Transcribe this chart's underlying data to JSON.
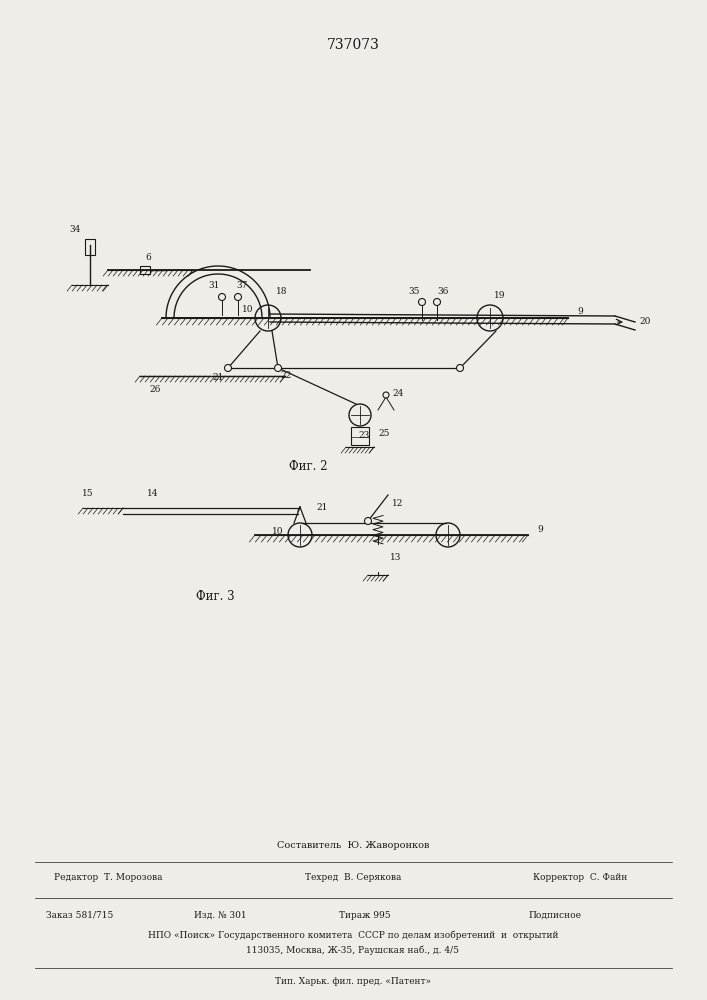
{
  "title": "737073",
  "fig2_caption": "Фиг. 2",
  "fig3_caption": "Фиг. 3",
  "lc": "#1a1a1a",
  "bg": "#f0ede8",
  "fs_label": 6.5,
  "fs_title": 10,
  "fs_caption": 8.5,
  "fs_footer": 6.5,
  "footer_line0": "Составитель  Ю. Жаворонков",
  "footer_ed": "Редактор  Т. Морозова",
  "footer_tech": "Техред  В. Серякова",
  "footer_corr": "Корректор  С. Файн",
  "footer_order": "Заказ 581/715",
  "footer_pub": "Изд. № 301",
  "footer_circ": "Тираж 995",
  "footer_sign": "Подписное",
  "footer_org": "НПО «Поиск» Государственного комитета  СССР по делам изобретений  и  открытий",
  "footer_addr": "113035, Москва, Ж-35, Раушская наб., д. 4/5",
  "footer_typ": "Тип. Харьк. фил. пред. «Патент»"
}
